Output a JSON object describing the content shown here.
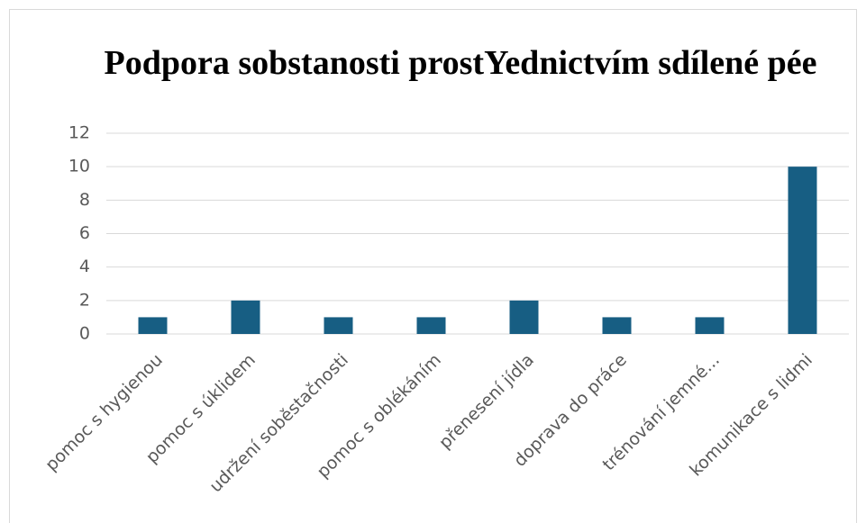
{
  "chart_data": {
    "type": "bar",
    "title": "Podpora sobstanosti prostYednictvím sdílené pée",
    "categories": [
      "pomoc s hygienou",
      "pomoc s úklidem",
      "udržení soběstačnosti",
      "pomoc s oblékáním",
      "přenesení jídla",
      "doprava do práce",
      "trénování jemné...",
      "komunikace s lidmi"
    ],
    "values": [
      1,
      2,
      1,
      1,
      2,
      1,
      1,
      10
    ],
    "color": "#175e83",
    "ylim": [
      0,
      12
    ],
    "yticks": [
      0,
      2,
      4,
      6,
      8,
      10,
      12
    ],
    "grid": true
  }
}
